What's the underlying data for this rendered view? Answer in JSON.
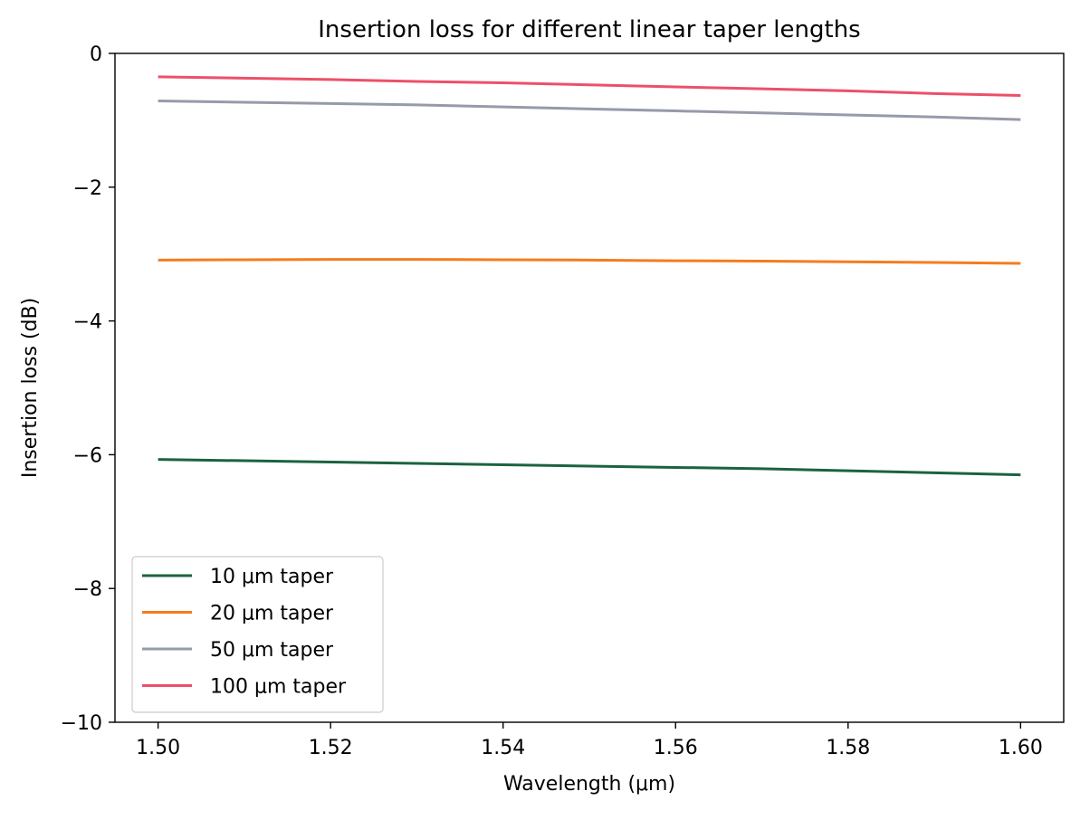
{
  "chart_data": {
    "type": "line",
    "title": "Insertion loss for different linear taper lengths",
    "xlabel": "Wavelength (μm)",
    "ylabel": "Insertion loss (dB)",
    "xlim": [
      1.495,
      1.605
    ],
    "ylim": [
      -10,
      0
    ],
    "xticks": [
      1.5,
      1.52,
      1.54,
      1.56,
      1.58,
      1.6
    ],
    "xtick_labels": [
      "1.50",
      "1.52",
      "1.54",
      "1.56",
      "1.58",
      "1.60"
    ],
    "yticks": [
      0,
      -2,
      -4,
      -6,
      -8,
      -10
    ],
    "ytick_labels": [
      "0",
      "−2",
      "−4",
      "−6",
      "−8",
      "−10"
    ],
    "grid": false,
    "legend_position": "lower-left",
    "x": [
      1.5,
      1.51,
      1.52,
      1.53,
      1.54,
      1.55,
      1.56,
      1.57,
      1.58,
      1.59,
      1.6
    ],
    "series": [
      {
        "name": "10 μm taper",
        "color": "#1b6340",
        "values": [
          -6.07,
          -6.09,
          -6.11,
          -6.13,
          -6.15,
          -6.17,
          -6.19,
          -6.21,
          -6.24,
          -6.27,
          -6.3
        ]
      },
      {
        "name": "20 μm taper",
        "color": "#f47c1e",
        "values": [
          -3.09,
          -3.085,
          -3.08,
          -3.08,
          -3.085,
          -3.09,
          -3.1,
          -3.105,
          -3.115,
          -3.125,
          -3.14
        ]
      },
      {
        "name": "50 μm taper",
        "color": "#969aaa",
        "values": [
          -0.71,
          -0.73,
          -0.75,
          -0.77,
          -0.8,
          -0.83,
          -0.86,
          -0.89,
          -0.92,
          -0.95,
          -0.99
        ]
      },
      {
        "name": "100 μm taper",
        "color": "#ed5069",
        "values": [
          -0.35,
          -0.37,
          -0.39,
          -0.42,
          -0.44,
          -0.47,
          -0.5,
          -0.53,
          -0.56,
          -0.6,
          -0.63
        ]
      }
    ]
  }
}
